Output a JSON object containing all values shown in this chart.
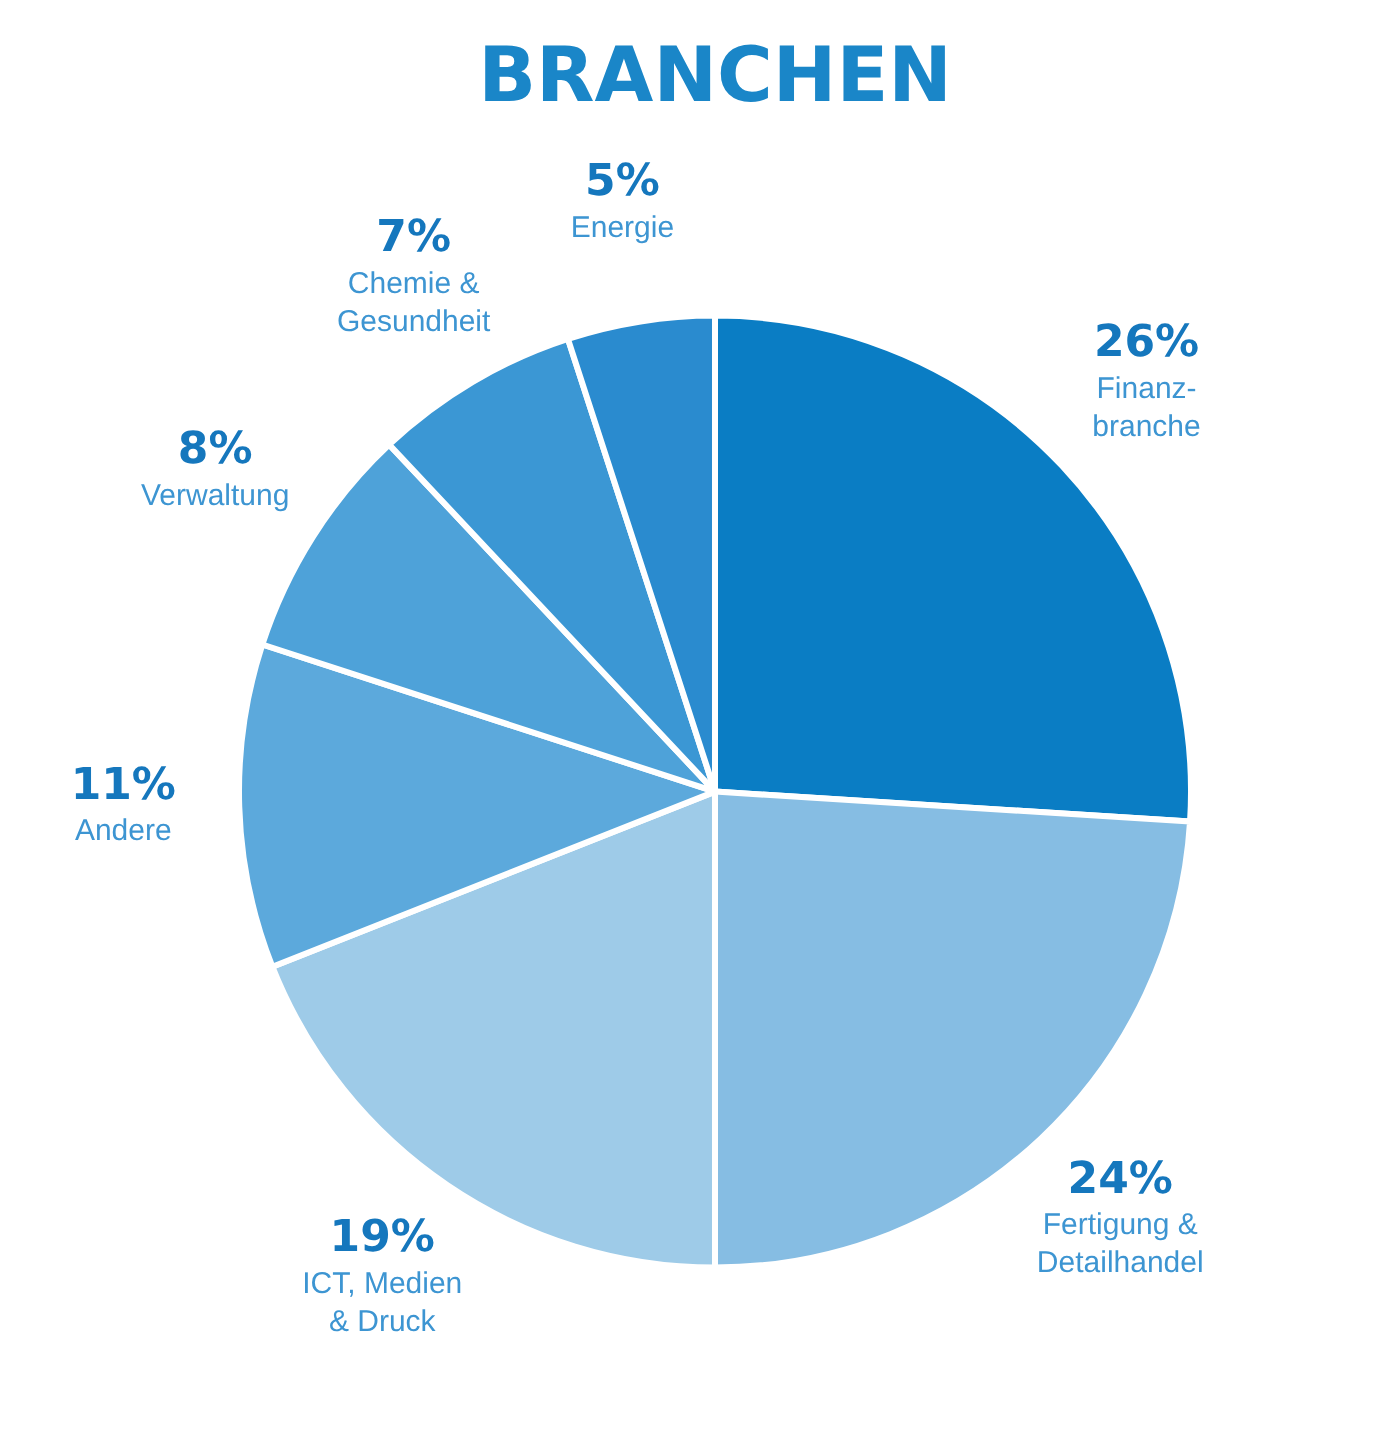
{
  "chart_data": {
    "type": "pie",
    "title": "BRANCHEN",
    "categories": [
      "Finanz-\nbranche",
      "Fertigung &\nDetailhandel",
      "ICT, Medien\n& Druck",
      "Andere",
      "Verwaltung",
      "Chemie &\nGesundheit",
      "Energie"
    ],
    "values": [
      26,
      24,
      19,
      11,
      8,
      7,
      5
    ],
    "value_labels": [
      "26%",
      "24%",
      "19%",
      "11%",
      "8%",
      "7%",
      "5%"
    ],
    "colors": [
      "#0a7dc4",
      "#86bde3",
      "#9ecbe8",
      "#5ca9dc",
      "#4ea2d9",
      "#3b97d4",
      "#2a8bcf"
    ],
    "legend": false
  }
}
